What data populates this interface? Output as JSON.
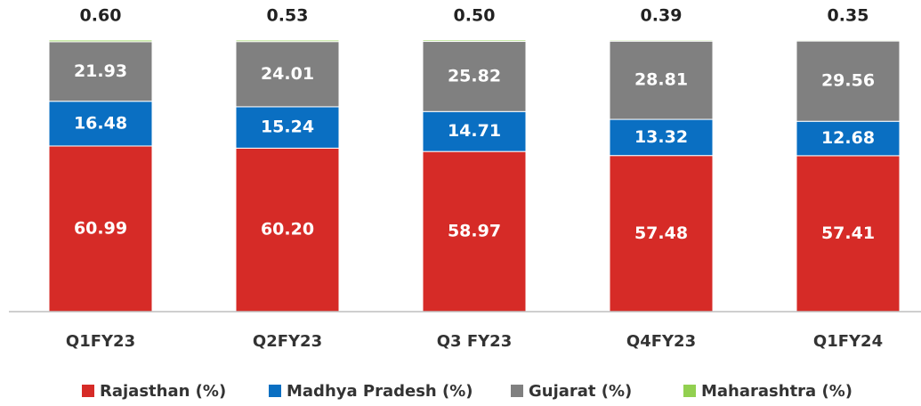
{
  "chart_data": {
    "type": "stacked_bar",
    "categories": [
      "Q1FY23",
      "Q2FY23",
      "Q3 FY23",
      "Q4FY23",
      "Q1FY24"
    ],
    "series": [
      {
        "name": "Rajasthan (%)",
        "color": "#d62b27",
        "values": [
          60.99,
          60.2,
          58.97,
          57.48,
          57.41
        ],
        "value_labels": [
          "60.99",
          "60.20",
          "58.97",
          "57.48",
          "57.41"
        ]
      },
      {
        "name": "Madhya Pradesh (%)",
        "color": "#0a6fc2",
        "values": [
          16.48,
          15.24,
          14.71,
          13.32,
          12.68
        ],
        "value_labels": [
          "16.48",
          "15.24",
          "14.71",
          "13.32",
          "12.68"
        ]
      },
      {
        "name": "Gujarat (%)",
        "color": "#808080",
        "values": [
          21.93,
          24.01,
          25.82,
          28.81,
          29.56
        ],
        "value_labels": [
          "21.93",
          "24.01",
          "25.82",
          "28.81",
          "29.56"
        ]
      },
      {
        "name": "Maharashtra (%)",
        "color": "#92d050",
        "values": [
          0.6,
          0.53,
          0.5,
          0.39,
          0.35
        ],
        "value_labels": [
          "0.60",
          "0.53",
          "0.50",
          "0.39",
          "0.35"
        ]
      }
    ],
    "ylim": [
      0,
      100
    ],
    "legend": "bottom"
  }
}
